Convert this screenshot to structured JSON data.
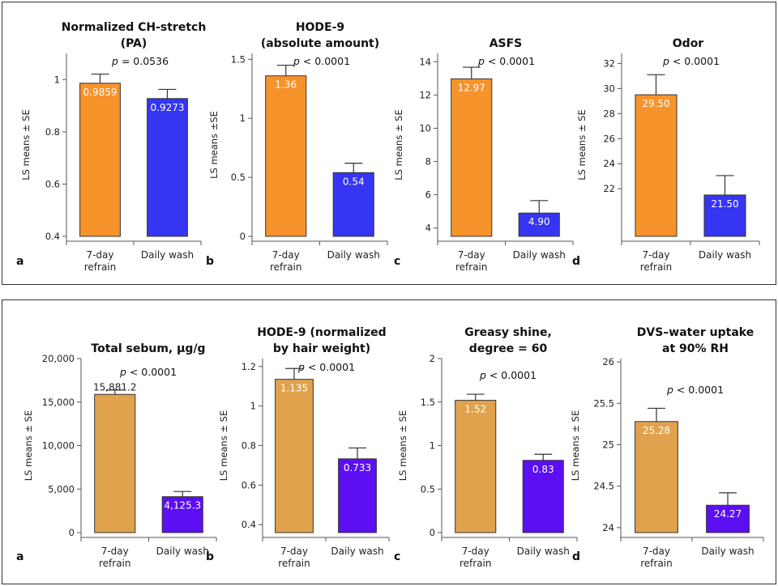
{
  "chart_data": [
    {
      "type": "bar",
      "title": [
        "Normalized CH-stretch",
        "(PA)"
      ],
      "p_text": "= 0.0536",
      "ylabel": "LS means ± SE",
      "panel_label": "a",
      "categories": [
        [
          "7-day",
          "refrain"
        ],
        [
          "Daily wash"
        ]
      ],
      "values": [
        0.9859,
        0.9273
      ],
      "value_labels": [
        "0.9859",
        "0.9273"
      ],
      "errors": [
        0.035,
        0.035
      ],
      "ylim": [
        0.4,
        1.1
      ],
      "ticks": [
        0.4,
        0.6,
        0.8,
        1
      ],
      "tick_labels": [
        "0.4",
        "0.6",
        "0.8",
        "1"
      ],
      "colors": [
        "#F7932B",
        "#3535F2"
      ],
      "label_inside": [
        true,
        true
      ],
      "label_color": [
        "#ffffff",
        "#ffffff"
      ]
    },
    {
      "type": "bar",
      "title": [
        "HODE-9",
        "(absolute amount)"
      ],
      "p_text": "< 0.0001",
      "ylabel": "LS means ±SE",
      "panel_label": "b",
      "categories": [
        [
          "7-day",
          "refrain"
        ],
        [
          "Daily wash"
        ]
      ],
      "values": [
        1.36,
        0.54
      ],
      "value_labels": [
        "1.36",
        "0.54"
      ],
      "errors": [
        0.09,
        0.08
      ],
      "ylim": [
        0,
        1.55
      ],
      "ticks": [
        0,
        0.5,
        1,
        1.5
      ],
      "tick_labels": [
        "0",
        "0.5",
        "1",
        "1.5"
      ],
      "colors": [
        "#F7932B",
        "#3535F2"
      ],
      "label_inside": [
        true,
        true
      ],
      "label_color": [
        "#ffffff",
        "#ffffff"
      ]
    },
    {
      "type": "bar",
      "title": [
        "ASFS"
      ],
      "p_text": "< 0.0001",
      "ylabel": "LS means ± SE",
      "panel_label": "c",
      "categories": [
        [
          "7-day",
          "refrain"
        ],
        [
          "Daily wash"
        ]
      ],
      "values": [
        12.97,
        4.9
      ],
      "value_labels": [
        "12.97",
        "4.90"
      ],
      "errors": [
        0.7,
        0.75
      ],
      "ylim": [
        3.5,
        14.5
      ],
      "ticks": [
        4,
        6,
        8,
        10,
        12,
        14
      ],
      "tick_labels": [
        "4",
        "6",
        "8",
        "10",
        "12",
        "14"
      ],
      "colors": [
        "#F7932B",
        "#3535F2"
      ],
      "label_inside": [
        true,
        true
      ],
      "label_color": [
        "#ffffff",
        "#ffffff"
      ]
    },
    {
      "type": "bar",
      "title": [
        "Odor"
      ],
      "p_text": "< 0.0001",
      "ylabel": "LS means ± SE",
      "panel_label": "d",
      "categories": [
        [
          "7-day",
          "refrain"
        ],
        [
          "Daily wash"
        ]
      ],
      "values": [
        29.5,
        21.5
      ],
      "value_labels": [
        "29.50",
        "21.50"
      ],
      "errors": [
        1.6,
        1.55
      ],
      "ylim": [
        18.2,
        32.8
      ],
      "ticks": [
        22,
        24,
        26,
        28,
        30,
        32
      ],
      "tick_labels": [
        "22",
        "24",
        "26",
        "28",
        "30",
        "32"
      ],
      "colors": [
        "#F7932B",
        "#3535F2"
      ],
      "label_inside": [
        true,
        true
      ],
      "label_color": [
        "#ffffff",
        "#ffffff"
      ]
    },
    {
      "type": "bar",
      "title": [
        "Total sebum, µg/g"
      ],
      "p_text": "< 0.0001",
      "ylabel": "LS means ± SE",
      "panel_label": "a",
      "categories": [
        [
          "7-day",
          "refrain"
        ],
        [
          "Daily wash"
        ]
      ],
      "values": [
        15881.2,
        4125.3
      ],
      "value_labels": [
        "15,881.2",
        "4,125.3"
      ],
      "errors": [
        500,
        600
      ],
      "ylim": [
        0,
        20000
      ],
      "ticks": [
        0,
        5000,
        10000,
        15000,
        20000
      ],
      "tick_labels": [
        "0",
        "5,000",
        "10,000",
        "15,000",
        "20,000"
      ],
      "colors": [
        "#E0A24C",
        "#5B0FF2"
      ],
      "label_inside": [
        false,
        true
      ],
      "label_color": [
        "#222222",
        "#ffffff"
      ]
    },
    {
      "type": "bar",
      "title": [
        "HODE-9 (normalized",
        "by hair weight)"
      ],
      "p_text": "< 0.0001",
      "ylabel": "LS means ± SE",
      "panel_label": "b",
      "categories": [
        [
          "7-day",
          "refrain"
        ],
        [
          "Daily wash"
        ]
      ],
      "values": [
        1.135,
        0.733
      ],
      "value_labels": [
        "1.135",
        "0.733"
      ],
      "errors": [
        0.055,
        0.055
      ],
      "ylim": [
        0.36,
        1.24
      ],
      "ticks": [
        0.4,
        0.6,
        0.8,
        1,
        1.2
      ],
      "tick_labels": [
        "0.4",
        "0.6",
        "0.8",
        "1",
        "1.2"
      ],
      "colors": [
        "#E0A24C",
        "#5B0FF2"
      ],
      "label_inside": [
        true,
        true
      ],
      "label_color": [
        "#ffffff",
        "#ffffff"
      ]
    },
    {
      "type": "bar",
      "title": [
        "Greasy shine,",
        "degree = 60"
      ],
      "p_text": "< 0.0001",
      "ylabel": "LS means ± SE",
      "panel_label": "c",
      "categories": [
        [
          "7-day",
          "refrain"
        ],
        [
          "Daily wash"
        ]
      ],
      "values": [
        1.52,
        0.83
      ],
      "value_labels": [
        "1.52",
        "0.83"
      ],
      "errors": [
        0.07,
        0.07
      ],
      "ylim": [
        0,
        2
      ],
      "ticks": [
        0,
        0.5,
        1,
        1.5,
        2
      ],
      "tick_labels": [
        "0",
        "0.5",
        "1",
        "1.5",
        "2"
      ],
      "colors": [
        "#E0A24C",
        "#5B0FF2"
      ],
      "label_inside": [
        true,
        true
      ],
      "label_color": [
        "#ffffff",
        "#ffffff"
      ]
    },
    {
      "type": "bar",
      "title": [
        "DVS–water uptake",
        "at 90% RH"
      ],
      "p_text": "< 0.0001",
      "ylabel": "LS means ± SE",
      "panel_label": "d",
      "categories": [
        [
          "7-day",
          "refrain"
        ],
        [
          "Daily wash"
        ]
      ],
      "values": [
        25.28,
        24.27
      ],
      "value_labels": [
        "25.28",
        "24.27"
      ],
      "errors": [
        0.16,
        0.15
      ],
      "ylim": [
        23.94,
        26.04
      ],
      "ticks": [
        24,
        24.5,
        25,
        25.5,
        26
      ],
      "tick_labels": [
        "24",
        "24.5",
        "25",
        "25.5",
        "26"
      ],
      "colors": [
        "#E0A24C",
        "#5B0FF2"
      ],
      "label_inside": [
        true,
        true
      ],
      "label_color": [
        "#ffffff",
        "#ffffff"
      ]
    }
  ],
  "p_symbol": "p"
}
